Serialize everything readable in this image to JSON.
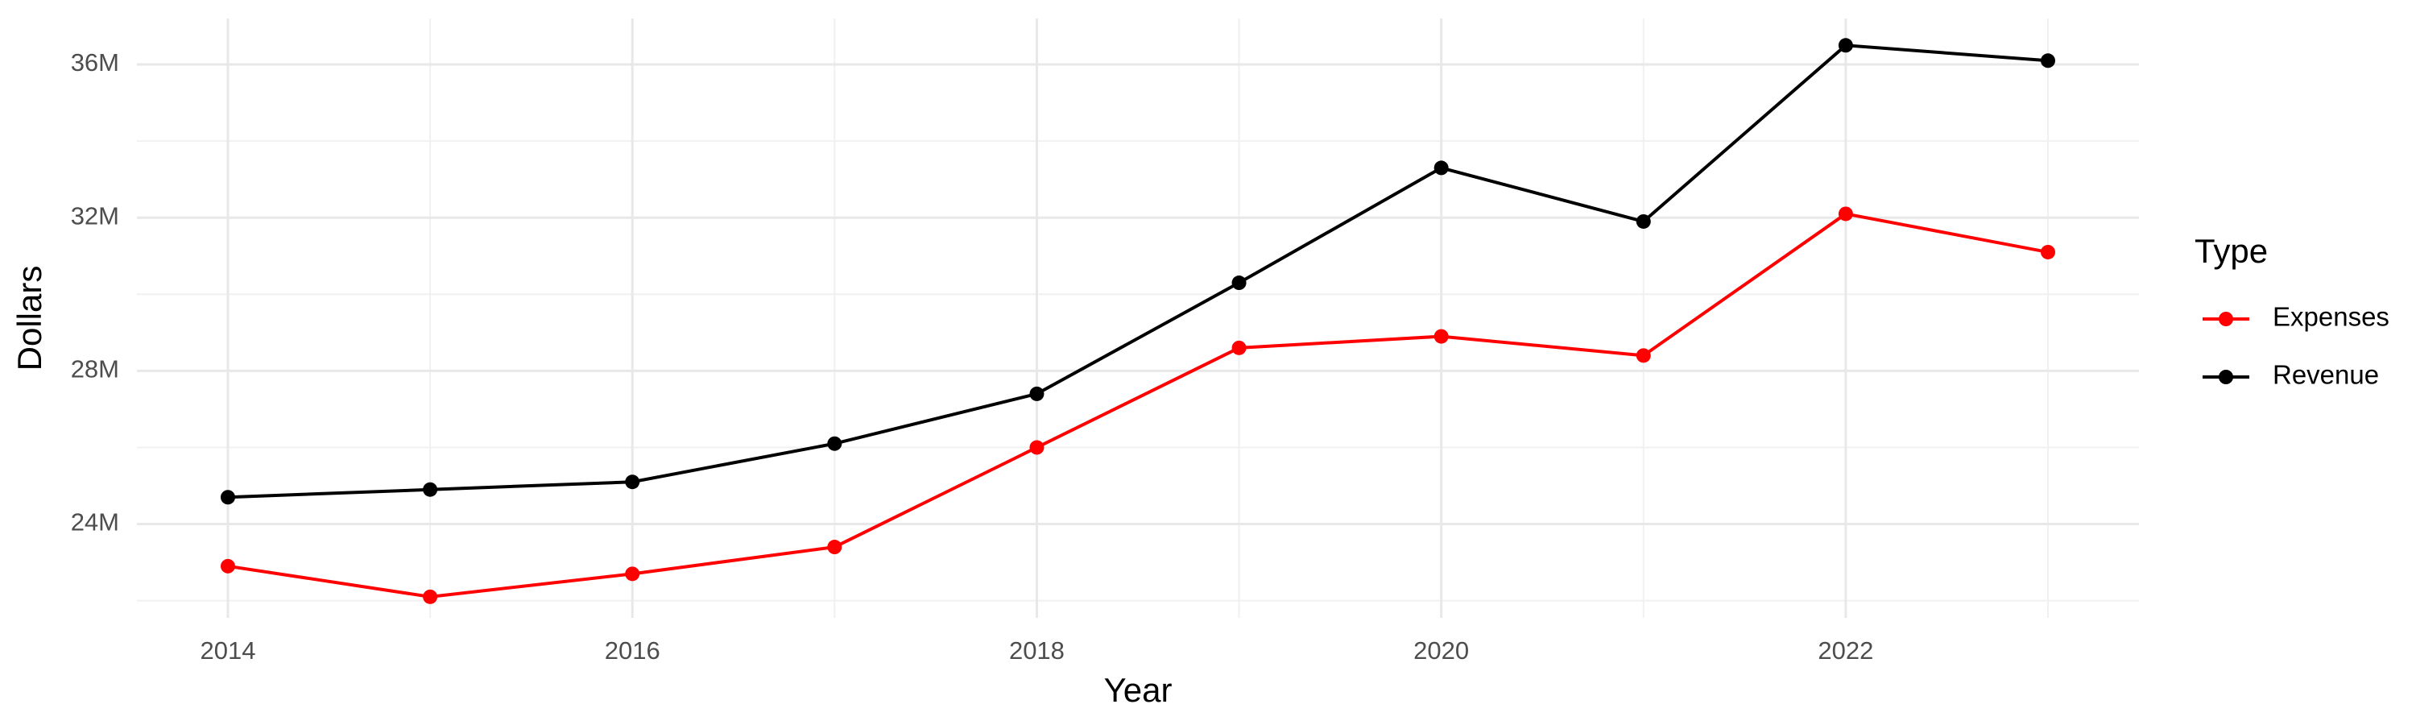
{
  "chart_data": {
    "type": "line",
    "x_label": "Year",
    "y_label": "Dollars",
    "legend_title": "Type",
    "legend_position": "right",
    "x": [
      2014,
      2015,
      2016,
      2017,
      2018,
      2019,
      2020,
      2021,
      2022,
      2023
    ],
    "series": [
      {
        "name": "Expenses",
        "color": "#ff0000",
        "values": [
          22900000,
          22100000,
          22700000,
          23400000,
          26000000,
          28600000,
          28900000,
          28400000,
          32100000,
          31100000
        ]
      },
      {
        "name": "Revenue",
        "color": "#000000",
        "values": [
          24700000,
          24900000,
          25100000,
          26100000,
          27400000,
          30300000,
          33300000,
          31900000,
          36500000,
          36100000
        ]
      }
    ],
    "xlim": [
      2013.55,
      2023.45
    ],
    "xticks": [
      2014,
      2016,
      2018,
      2020,
      2022
    ],
    "x_minor_ticks": [
      2015,
      2017,
      2019,
      2021,
      2023
    ],
    "ylim": [
      21550000,
      37200000
    ],
    "yticks": [
      {
        "value": 24000000,
        "label": "24M"
      },
      {
        "value": 28000000,
        "label": "28M"
      },
      {
        "value": 32000000,
        "label": "32M"
      },
      {
        "value": 36000000,
        "label": "36M"
      }
    ],
    "y_minor_ticks": [
      22000000,
      26000000,
      30000000,
      34000000
    ],
    "grid": true
  }
}
